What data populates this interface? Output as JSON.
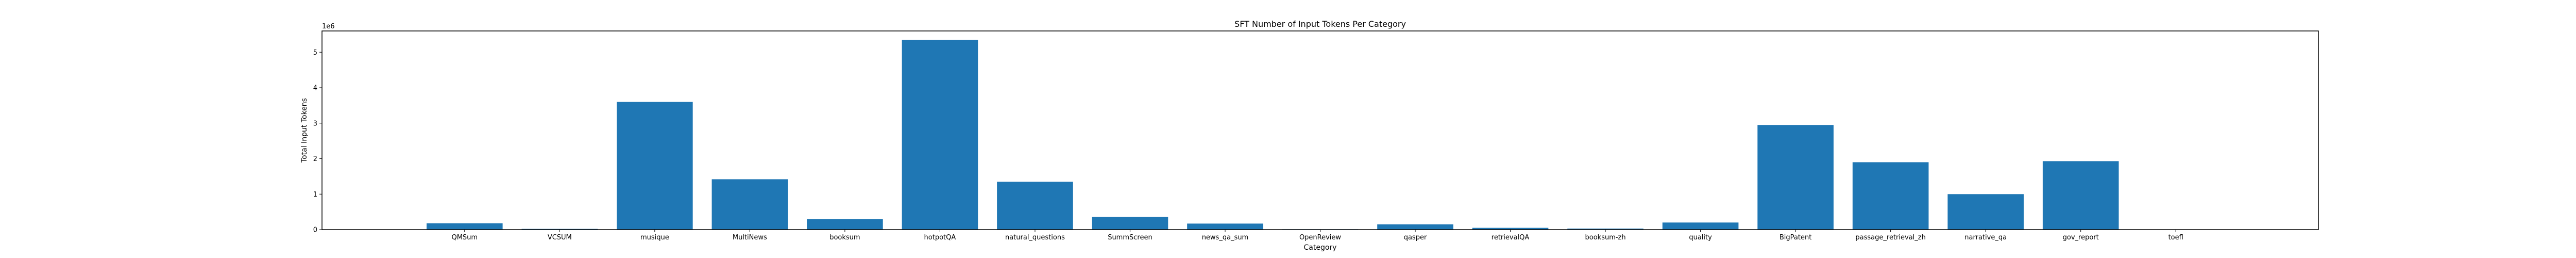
{
  "chart_data": {
    "type": "bar",
    "title": "SFT Number of Input Tokens Per Category",
    "xlabel": "Category",
    "ylabel": "Total Input Tokens",
    "y_offset_label": "1e6",
    "ylim": [
      0,
      5.6
    ],
    "yticks": [
      0,
      1,
      2,
      3,
      4,
      5
    ],
    "ytick_labels": [
      "0",
      "1",
      "2",
      "3",
      "4",
      "5"
    ],
    "grid": false,
    "categories": [
      "QMSum",
      "VCSUM",
      "musique",
      "MultiNews",
      "booksum",
      "hotpotQA",
      "natural_questions",
      "SummScreen",
      "news_qa_sum",
      "OpenReview",
      "qasper",
      "retrievalQA",
      "booksum-zh",
      "quality",
      "BigPatent",
      "passage_retrieval_zh",
      "narrative_qa",
      "gov_report",
      "toefl"
    ],
    "values": [
      0.18,
      0.02,
      3.6,
      1.42,
      0.3,
      5.35,
      1.35,
      0.36,
      0.17,
      0.01,
      0.15,
      0.05,
      0.03,
      0.2,
      2.95,
      1.9,
      1.0,
      1.93,
      0.0
    ],
    "bar_color": "#1f77b4"
  }
}
